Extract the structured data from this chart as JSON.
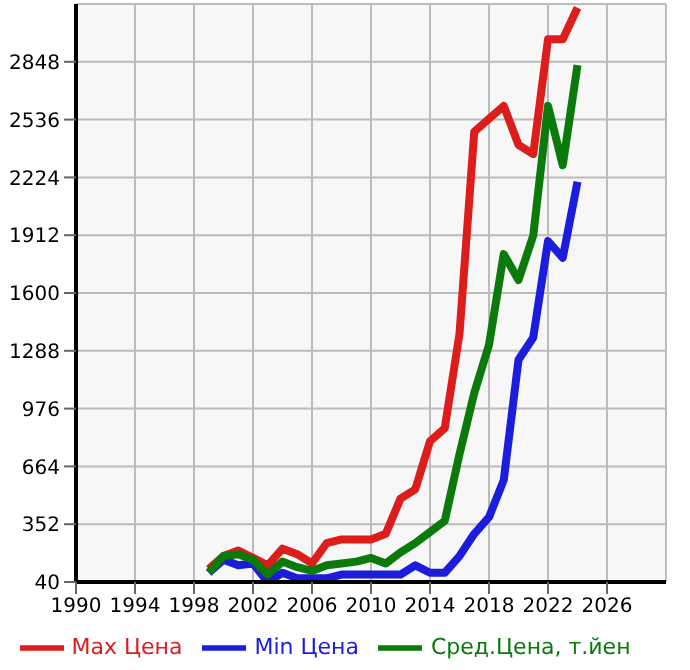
{
  "chart_data": {
    "type": "line",
    "x": [
      1999,
      2000,
      2001,
      2002,
      2003,
      2004,
      2005,
      2006,
      2007,
      2008,
      2009,
      2010,
      2011,
      2012,
      2013,
      2014,
      2015,
      2016,
      2017,
      2018,
      2019,
      2020,
      2021,
      2022,
      2023,
      2024
    ],
    "series": [
      {
        "name": "Max Цена",
        "color": "#dd1c1c",
        "values": [
          110,
          180,
          210,
          170,
          130,
          220,
          190,
          140,
          250,
          270,
          270,
          270,
          300,
          490,
          540,
          800,
          870,
          1380,
          2470,
          2540,
          2610,
          2400,
          2350,
          2970,
          2970,
          3140
        ]
      },
      {
        "name": "Min Цена",
        "color": "#1c1cdd",
        "values": [
          90,
          160,
          130,
          140,
          40,
          90,
          60,
          60,
          60,
          80,
          80,
          80,
          80,
          80,
          130,
          90,
          90,
          180,
          300,
          390,
          590,
          1240,
          1360,
          1880,
          1790,
          2200
        ]
      },
      {
        "name": "Сред.Цена, т.йен",
        "color": "#0a7a0a",
        "values": [
          90,
          180,
          190,
          160,
          80,
          150,
          120,
          100,
          130,
          140,
          150,
          170,
          140,
          200,
          250,
          310,
          370,
          730,
          1060,
          1320,
          1810,
          1670,
          1910,
          2610,
          2290,
          2830
        ]
      }
    ],
    "xlim": [
      1990,
      2030
    ],
    "xticks": [
      1990,
      1994,
      1998,
      2002,
      2006,
      2010,
      2014,
      2018,
      2022,
      2026
    ],
    "ylim": [
      40,
      3160
    ],
    "yticks": [
      40,
      352,
      664,
      976,
      1288,
      1600,
      1912,
      2224,
      2536,
      2848
    ],
    "grid": true,
    "legend": "bottom",
    "marker": "none",
    "line_style": "solid"
  }
}
